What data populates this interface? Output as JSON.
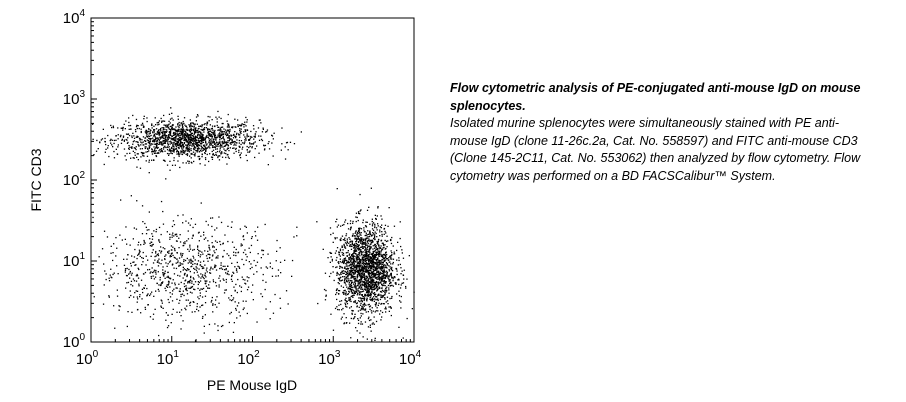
{
  "chart_data": {
    "type": "scatter",
    "title": "",
    "xlabel": "PE Mouse IgD",
    "ylabel": "FITC CD3",
    "x_scale": "log",
    "y_scale": "log",
    "xlim": [
      1,
      10000
    ],
    "ylim": [
      1,
      10000
    ],
    "x_ticks": [
      {
        "base": "10",
        "exp": "0",
        "value": 1
      },
      {
        "base": "10",
        "exp": "1",
        "value": 10
      },
      {
        "base": "10",
        "exp": "2",
        "value": 100
      },
      {
        "base": "10",
        "exp": "3",
        "value": 1000
      },
      {
        "base": "10",
        "exp": "4",
        "value": 10000
      }
    ],
    "y_ticks": [
      {
        "base": "10",
        "exp": "0",
        "value": 1
      },
      {
        "base": "10",
        "exp": "1",
        "value": 10
      },
      {
        "base": "10",
        "exp": "2",
        "value": 100
      },
      {
        "base": "10",
        "exp": "3",
        "value": 1000
      },
      {
        "base": "10",
        "exp": "4",
        "value": 10000
      }
    ],
    "grid": false,
    "populations": [
      {
        "x_center": 15,
        "y_center": 320,
        "x_spread_decades": 0.45,
        "y_spread_decades": 0.12,
        "points": 1600
      },
      {
        "x_center": 2500,
        "y_center": 8,
        "x_spread_decades": 0.18,
        "y_spread_decades": 0.28,
        "points": 2000
      },
      {
        "x_center": 15,
        "y_center": 8,
        "x_spread_decades": 0.55,
        "y_spread_decades": 0.3,
        "points": 900
      }
    ],
    "point_color": "#000000"
  },
  "caption": {
    "title": "Flow cytometric analysis of PE-conjugated anti-mouse IgD on mouse splenocytes.",
    "body": "Isolated murine splenocytes were simultaneously stained with PE anti-mouse IgD (clone 11-26c.2a, Cat. No. 558597) and FITC anti-mouse CD3 (Clone 145-2C11, Cat. No. 553062) then analyzed by flow cytometry.  Flow cytometry was performed on a BD FACSCalibur™ System."
  }
}
